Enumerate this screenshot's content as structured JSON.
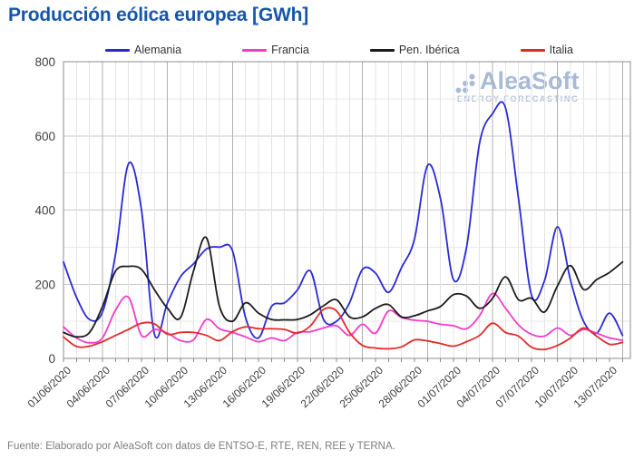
{
  "page": {
    "title": "Producción eólica europea [GWh]",
    "footer": "Fuente: Elaborado por AleaSoft con datos de ENTSO-E, RTE, REN, REE y TERNA."
  },
  "watermark": {
    "name": "AleaSoft",
    "tagline": "ENERGY FORECASTING",
    "color": "#A8BAD7"
  },
  "colors": {
    "title": "#1656A8",
    "axis_text": "#3F3F3F",
    "grid_light": "#E4E4E4",
    "grid_major": "#B0B0B0",
    "grid_h_light": "#EAEAEA",
    "grid_h_medium": "#C9C9C9",
    "plot_border": "#8C8C8C",
    "footer_text": "#7E7E7E"
  },
  "chart_data": {
    "type": "line",
    "title": "Producción eólica europea [GWh]",
    "xlabel": "",
    "ylabel": "",
    "ylim": [
      0,
      800
    ],
    "y_ticks": [
      0,
      200,
      400,
      600,
      800
    ],
    "grid": "daily vertical lines (major every 5 days), horizontal every 100",
    "legend_position": "top",
    "x_unit": "day",
    "x_tick_every_days": 3,
    "x_tick_labels": [
      "01/06/2020",
      "04/06/2020",
      "07/06/2020",
      "10/06/2020",
      "13/06/2020",
      "16/06/2020",
      "19/06/2020",
      "22/06/2020",
      "25/06/2020",
      "28/06/2020",
      "01/07/2020",
      "04/07/2020",
      "07/07/2020",
      "10/07/2020",
      "13/07/2020"
    ],
    "series": [
      {
        "name": "Alemania",
        "color": "#2A2AD4",
        "values": [
          260,
          165,
          105,
          125,
          280,
          525,
          400,
          65,
          150,
          220,
          255,
          295,
          300,
          290,
          110,
          55,
          140,
          150,
          185,
          235,
          105,
          100,
          150,
          240,
          230,
          178,
          245,
          322,
          520,
          430,
          212,
          300,
          580,
          660,
          675,
          430,
          170,
          210,
          355,
          210,
          100,
          68,
          122,
          62
        ]
      },
      {
        "name": "Francia",
        "color": "#F23CCB",
        "values": [
          85,
          55,
          42,
          55,
          130,
          165,
          62,
          78,
          68,
          48,
          50,
          105,
          80,
          70,
          58,
          45,
          55,
          48,
          70,
          72,
          82,
          88,
          62,
          92,
          68,
          128,
          110,
          103,
          100,
          92,
          88,
          80,
          115,
          175,
          135,
          90,
          65,
          60,
          82,
          62,
          78,
          68,
          55,
          49
        ]
      },
      {
        "name": "Pen. Ibérica",
        "color": "#1C1C1C",
        "values": [
          70,
          58,
          70,
          140,
          235,
          248,
          240,
          185,
          135,
          110,
          235,
          325,
          140,
          100,
          150,
          122,
          105,
          104,
          105,
          118,
          142,
          158,
          112,
          112,
          135,
          145,
          112,
          115,
          128,
          140,
          172,
          168,
          135,
          162,
          220,
          158,
          162,
          125,
          196,
          250,
          186,
          212,
          232,
          260
        ]
      },
      {
        "name": "Italia",
        "color": "#E02B2B",
        "values": [
          58,
          32,
          33,
          45,
          62,
          78,
          95,
          93,
          65,
          70,
          70,
          62,
          48,
          72,
          85,
          80,
          80,
          78,
          68,
          88,
          132,
          128,
          70,
          35,
          28,
          26,
          31,
          50,
          47,
          40,
          33,
          45,
          62,
          95,
          70,
          60,
          30,
          24,
          35,
          55,
          82,
          60,
          38,
          43
        ]
      }
    ]
  }
}
